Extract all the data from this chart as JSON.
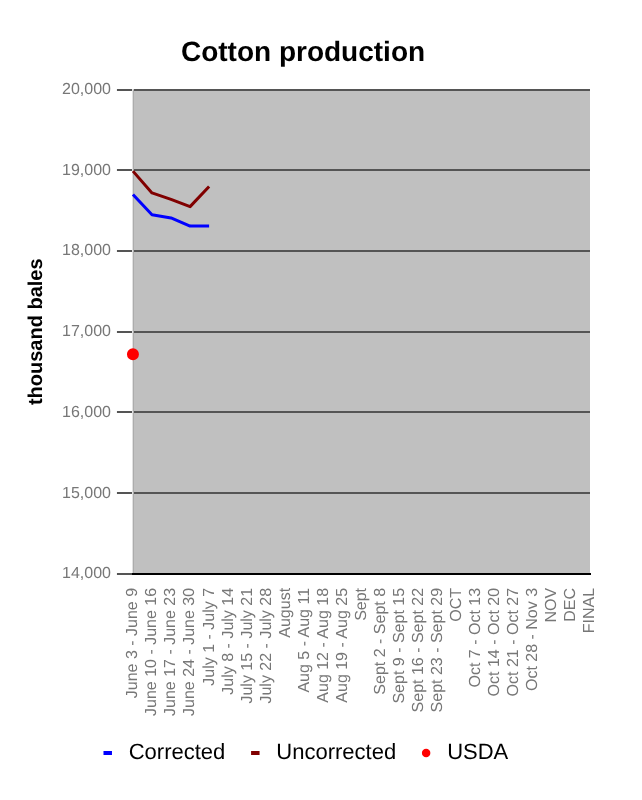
{
  "chart_data": {
    "type": "line",
    "title": "Cotton production",
    "ylabel": "thousand bales",
    "categories": [
      "June 3 - June 9",
      "June 10 - June 16",
      "June 17 - June 23",
      "June 24 - June 30",
      "July 1 - July 7",
      "July 8 - July 14",
      "July 15 - July 21",
      "July 22 - July 28",
      "August",
      "Aug 5 - Aug 11",
      "Aug 12 - Aug 18",
      "Aug 19 - Aug 25",
      "Sept",
      "Sept 2 - Sept 8",
      "Sept 9 - Sept 15",
      "Sept 16 - Sept 22",
      "Sept 23 - Sept 29",
      "OCT",
      "Oct 7 - Oct 13",
      "Oct 14 - Oct 20",
      "Oct 21 - Oct 27",
      "Oct 28 - Nov 3",
      "NOV",
      "DEC",
      "FINAL"
    ],
    "series": [
      {
        "name": "Corrected",
        "color": "#0000ff",
        "values": [
          18700,
          18450,
          18410,
          18310,
          18310,
          null,
          null,
          null,
          null,
          null,
          null,
          null,
          null,
          null,
          null,
          null,
          null,
          null,
          null,
          null,
          null,
          null,
          null,
          null,
          null
        ]
      },
      {
        "name": "Uncorrected",
        "color": "#800000",
        "values": [
          18990,
          18720,
          18640,
          18550,
          18800,
          null,
          null,
          null,
          null,
          null,
          null,
          null,
          null,
          null,
          null,
          null,
          null,
          null,
          null,
          null,
          null,
          null,
          null,
          null,
          null
        ]
      },
      {
        "name": "USDA",
        "type": "scatter",
        "marker": "circle",
        "color": "#ff0000",
        "values": [
          16720,
          null,
          null,
          null,
          null,
          null,
          null,
          null,
          null,
          null,
          null,
          null,
          null,
          null,
          null,
          null,
          null,
          null,
          null,
          null,
          null,
          null,
          null,
          null,
          null
        ]
      }
    ],
    "ylim": [
      14000,
      20000
    ],
    "yticks": [
      {
        "value": 14000,
        "label": "14,000"
      },
      {
        "value": 15000,
        "label": "15,000"
      },
      {
        "value": 16000,
        "label": "16,000"
      },
      {
        "value": 17000,
        "label": "17,000"
      },
      {
        "value": 18000,
        "label": "18,000"
      },
      {
        "value": 19000,
        "label": "19,000"
      },
      {
        "value": 20000,
        "label": "20,000"
      }
    ],
    "grid": "y",
    "legend": "bottom",
    "marker": "none"
  }
}
